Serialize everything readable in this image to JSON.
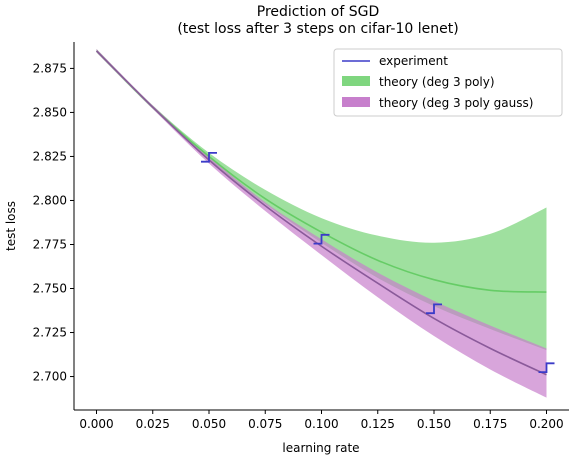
{
  "chart_data": {
    "type": "line",
    "title": [
      "Prediction of SGD",
      "(test loss after 3 steps on cifar-10 lenet)"
    ],
    "xlabel": "learning rate",
    "ylabel": "test loss",
    "xlim": [
      -0.01,
      0.21
    ],
    "ylim": [
      2.681,
      2.89
    ],
    "x_ticks": [
      0.0,
      0.025,
      0.05,
      0.075,
      0.1,
      0.125,
      0.15,
      0.175,
      0.2
    ],
    "x_tick_labels": [
      "0.000",
      "0.025",
      "0.050",
      "0.075",
      "0.100",
      "0.125",
      "0.150",
      "0.175",
      "0.200"
    ],
    "y_ticks": [
      2.7,
      2.725,
      2.75,
      2.775,
      2.8,
      2.825,
      2.85,
      2.875
    ],
    "y_tick_labels": [
      "2.700",
      "2.725",
      "2.750",
      "2.775",
      "2.800",
      "2.825",
      "2.850",
      "2.875"
    ],
    "legend_position": "top-right",
    "series": [
      {
        "name": "experiment",
        "kind": "errorbar",
        "color": "#3b3bc8",
        "x": [
          0.05,
          0.1,
          0.15,
          0.2
        ],
        "y": [
          2.8245,
          2.778,
          2.7385,
          2.705
        ],
        "yerr": [
          0.0025,
          0.0025,
          0.0025,
          0.0025
        ]
      },
      {
        "name": "theory (deg 3 poly)",
        "kind": "band",
        "color": "#7fd67f",
        "line_color": "#66cc66",
        "x": [
          0.0,
          0.025,
          0.05,
          0.075,
          0.1,
          0.125,
          0.15,
          0.175,
          0.2
        ],
        "center": [
          2.885,
          2.853,
          2.825,
          2.801,
          2.782,
          2.766,
          2.755,
          2.749,
          2.748
        ],
        "lower": [
          2.884,
          2.852,
          2.823,
          2.798,
          2.776,
          2.756,
          2.74,
          2.727,
          2.715
        ],
        "upper": [
          2.886,
          2.854,
          2.827,
          2.806,
          2.79,
          2.78,
          2.776,
          2.781,
          2.796
        ]
      },
      {
        "name": "theory (deg 3 poly gauss)",
        "kind": "band",
        "color": "#c77fcc",
        "line_color": "#8a5a9a",
        "x": [
          0.0,
          0.025,
          0.05,
          0.075,
          0.1,
          0.125,
          0.15,
          0.175,
          0.2
        ],
        "center": [
          2.885,
          2.853,
          2.823,
          2.797,
          2.774,
          2.753,
          2.733,
          2.716,
          2.701
        ],
        "lower": [
          2.884,
          2.852,
          2.821,
          2.794,
          2.769,
          2.745,
          2.723,
          2.704,
          2.688
        ],
        "upper": [
          2.886,
          2.854,
          2.825,
          2.799,
          2.778,
          2.759,
          2.743,
          2.729,
          2.716
        ]
      }
    ]
  }
}
